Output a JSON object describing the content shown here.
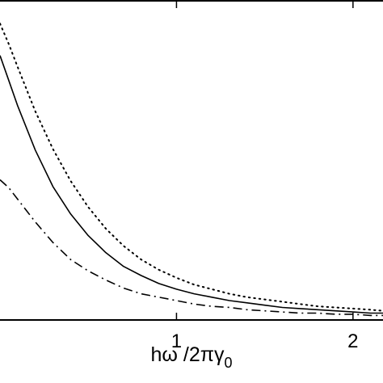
{
  "chart_data": {
    "type": "line",
    "title": "",
    "xlabel": {
      "main": "hω /2πγ",
      "subscript": "0"
    },
    "ylabel": "",
    "xlim": [
      0,
      2.17
    ],
    "ylim": [
      0,
      2.8
    ],
    "xticks": [
      {
        "value": 1,
        "label": "1"
      },
      {
        "value": 2,
        "label": "2"
      }
    ],
    "grid": false,
    "legend": "none",
    "series": [
      {
        "style": "solid",
        "color": "#000000",
        "x": [
          0.0,
          0.05,
          0.1,
          0.2,
          0.3,
          0.4,
          0.5,
          0.6,
          0.7,
          0.8,
          0.9,
          1.0,
          1.1,
          1.2,
          1.3,
          1.4,
          1.5,
          1.6,
          1.7,
          1.8,
          1.9,
          2.0,
          2.1,
          2.17
        ],
        "y": [
          2.32,
          2.1,
          1.88,
          1.49,
          1.17,
          0.93,
          0.74,
          0.59,
          0.47,
          0.39,
          0.32,
          0.27,
          0.23,
          0.2,
          0.17,
          0.15,
          0.13,
          0.11,
          0.1,
          0.09,
          0.08,
          0.07,
          0.06,
          0.06
        ]
      },
      {
        "style": "dotted",
        "color": "#000000",
        "x": [
          0.0,
          0.05,
          0.1,
          0.2,
          0.3,
          0.4,
          0.5,
          0.6,
          0.7,
          0.8,
          0.9,
          1.0,
          1.1,
          1.2,
          1.3,
          1.4,
          1.5,
          1.6,
          1.7,
          1.8,
          1.9,
          2.0,
          2.1,
          2.17
        ],
        "y": [
          2.6,
          2.42,
          2.22,
          1.83,
          1.5,
          1.22,
          0.99,
          0.8,
          0.65,
          0.53,
          0.44,
          0.37,
          0.31,
          0.27,
          0.23,
          0.2,
          0.18,
          0.16,
          0.14,
          0.12,
          0.11,
          0.1,
          0.09,
          0.08
        ]
      },
      {
        "style": "dashdot",
        "color": "#000000",
        "x": [
          0.0,
          0.05,
          0.1,
          0.2,
          0.3,
          0.4,
          0.5,
          0.6,
          0.7,
          0.8,
          0.9,
          1.0,
          1.1,
          1.2,
          1.3,
          1.4,
          1.5,
          1.6,
          1.7,
          1.8,
          1.9,
          2.0,
          2.1,
          2.17
        ],
        "y": [
          1.23,
          1.16,
          1.06,
          0.86,
          0.68,
          0.53,
          0.43,
          0.35,
          0.28,
          0.23,
          0.2,
          0.17,
          0.14,
          0.12,
          0.11,
          0.09,
          0.08,
          0.07,
          0.06,
          0.06,
          0.05,
          0.05,
          0.04,
          0.04
        ]
      }
    ]
  }
}
